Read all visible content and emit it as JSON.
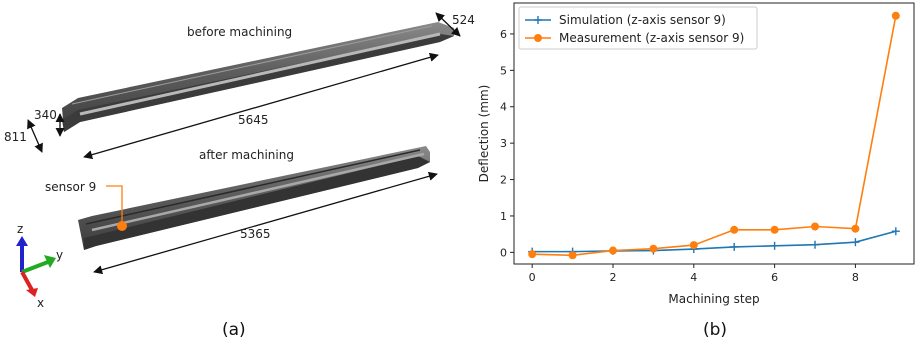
{
  "panel_a": {
    "label_before": "before machining",
    "label_after": "after machining",
    "dim_length_before": "5645",
    "dim_length_after": "5365",
    "dim_width": "524",
    "dim_height_small": "340",
    "dim_height_large": "811",
    "sensor_label": "sensor 9",
    "axis_z": "z",
    "axis_y": "y",
    "axis_x": "x",
    "caption": "(a)",
    "colors": {
      "sensor": "#ff7f0e",
      "z_axis": "#2222cc",
      "y_axis": "#22aa22",
      "x_axis": "#dd2222",
      "part": "#5a5a5a"
    }
  },
  "panel_b": {
    "caption": "(b)"
  },
  "chart_data": {
    "type": "line",
    "xlabel": "Machining step",
    "ylabel": "Deflection (mm)",
    "xlim": [
      -0.45,
      9.45
    ],
    "ylim": [
      -0.32,
      6.85
    ],
    "xticks": [
      0,
      2,
      4,
      6,
      8
    ],
    "yticks": [
      0,
      1,
      2,
      3,
      4,
      5,
      6
    ],
    "grid": false,
    "legend_position": "top-left",
    "series": [
      {
        "name": "Simulation      (z-axis sensor 9)",
        "color": "#1f77b4",
        "marker": "plus",
        "x": [
          0,
          1,
          2,
          3,
          4,
          5,
          6,
          7,
          8,
          9
        ],
        "y": [
          0.02,
          0.02,
          0.04,
          0.05,
          0.09,
          0.15,
          0.18,
          0.21,
          0.28,
          0.58
        ]
      },
      {
        "name": "Measurement (z-axis sensor 9)",
        "color": "#ff7f0e",
        "marker": "circle",
        "x": [
          0,
          1,
          2,
          3,
          4,
          5,
          6,
          7,
          8,
          9
        ],
        "y": [
          -0.05,
          -0.08,
          0.05,
          0.1,
          0.2,
          0.62,
          0.62,
          0.71,
          0.65,
          6.5
        ]
      }
    ]
  }
}
